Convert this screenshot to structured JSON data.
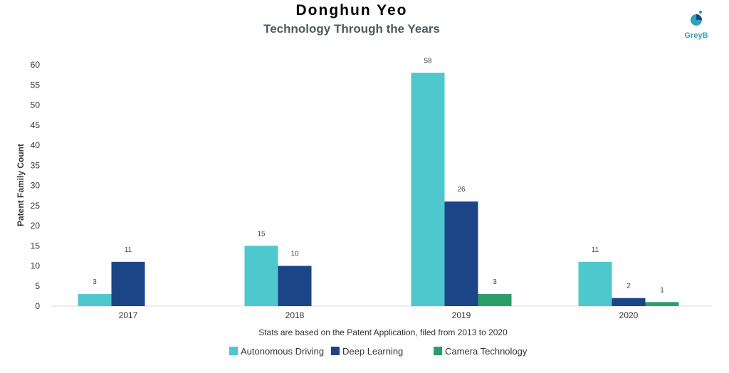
{
  "chart_data": {
    "type": "bar",
    "title": "Donghun Yeo",
    "subtitle": "Technology Through the Years",
    "ylabel": "Patent Family Count",
    "xlabel": "",
    "note": "Stats are based on the Patent Application, filed from 2013 to 2020",
    "categories": [
      "2017",
      "2018",
      "2019",
      "2020"
    ],
    "ylim": [
      0,
      60
    ],
    "yticks": [
      0,
      5,
      10,
      15,
      20,
      25,
      30,
      35,
      40,
      45,
      50,
      55,
      60
    ],
    "grid": false,
    "legend_position": "bottom",
    "series": [
      {
        "name": "Autonomous Driving",
        "color": "#4ec8cc",
        "values": [
          3,
          15,
          58,
          11
        ]
      },
      {
        "name": "Deep Learning",
        "color": "#1b4587",
        "values": [
          11,
          10,
          26,
          2
        ]
      },
      {
        "name": "Camera Technology",
        "color": "#2b9e6a",
        "values": [
          null,
          null,
          3,
          1
        ]
      }
    ]
  },
  "logo": {
    "text": "GreyB",
    "icon": "greyb-logo-icon",
    "color": "#2aa4b7"
  }
}
